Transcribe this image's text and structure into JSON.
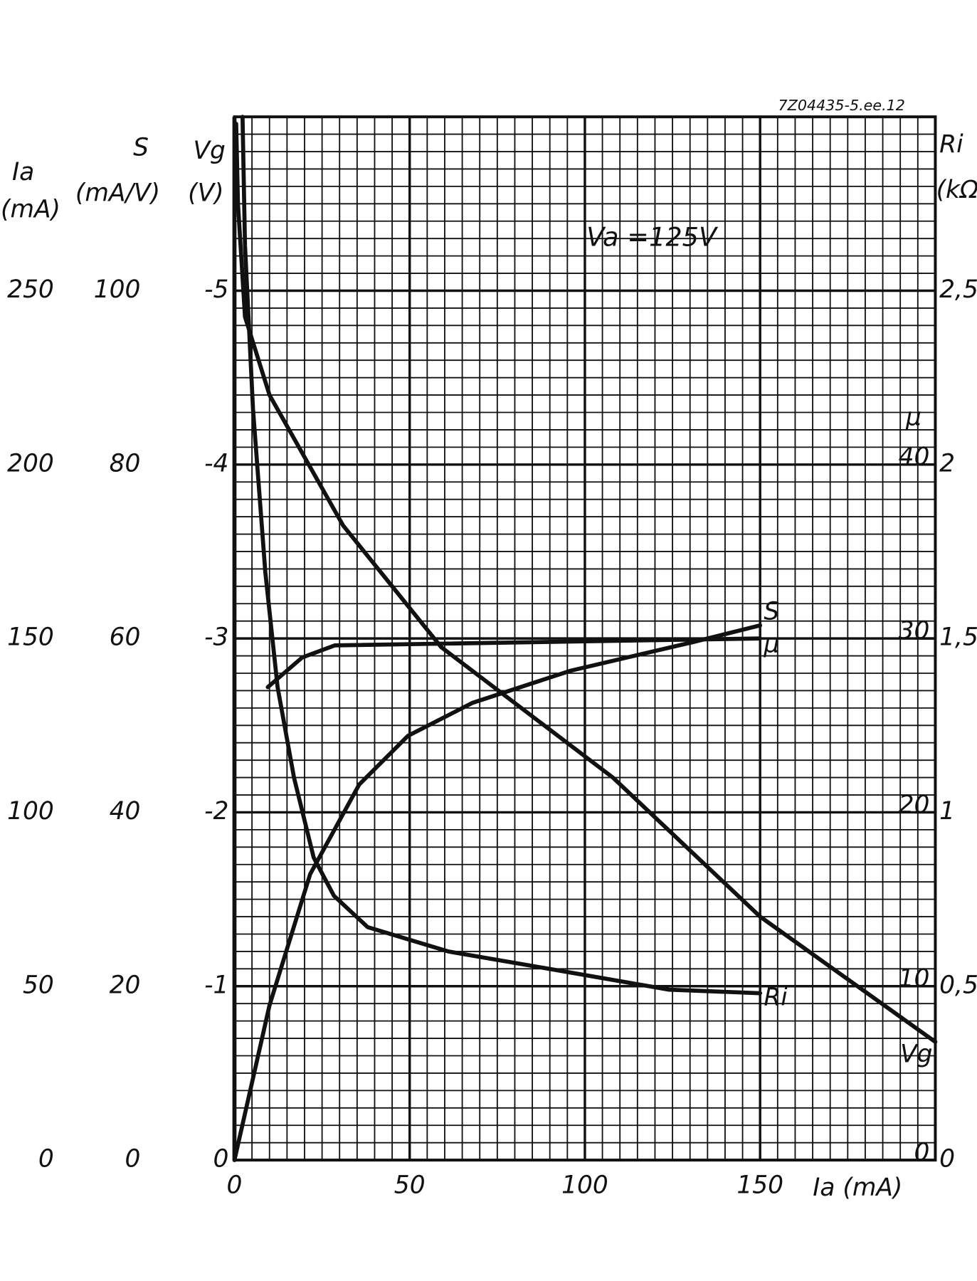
{
  "chart_data": {
    "type": "line",
    "reference": "7Z04435-5.ee.12",
    "annotation": "Va =125V",
    "xlabel": "Ia (mA)",
    "xlim": [
      0,
      200
    ],
    "xticks": [
      0,
      50,
      100,
      150
    ],
    "grid": true,
    "color": "#111111",
    "axes": [
      {
        "symbol": "Ia",
        "unit": "(mA)",
        "side": "left",
        "lim": [
          0,
          300
        ],
        "ticks": [
          0,
          50,
          100,
          150,
          200,
          250
        ]
      },
      {
        "symbol": "S",
        "unit": "(mA/V)",
        "side": "left",
        "lim": [
          0,
          120
        ],
        "ticks": [
          0,
          20,
          40,
          60,
          80,
          100
        ]
      },
      {
        "symbol": "Vg",
        "unit": "(V)",
        "side": "left",
        "lim": [
          0,
          -6
        ],
        "ticks": [
          0,
          -1,
          -2,
          -3,
          -4,
          -5
        ]
      },
      {
        "symbol": "μ",
        "side": "right",
        "lim": [
          0,
          60
        ],
        "ticks": [
          0,
          10,
          20,
          30,
          40
        ]
      },
      {
        "symbol": "Ri",
        "unit": "(kΩ)",
        "side": "right",
        "lim": [
          0,
          3
        ],
        "ticks": [
          0,
          {
            "value": 0.5,
            "label": "0,5"
          },
          1,
          {
            "value": 1.5,
            "label": "1,5"
          },
          2,
          {
            "value": 2.5,
            "label": "2,5"
          }
        ]
      }
    ],
    "series": [
      {
        "name": "Vg",
        "axis": 2,
        "color": "#111111",
        "x": [
          0.5,
          1,
          3,
          10,
          31,
          59,
          108,
          150,
          200
        ],
        "values": [
          -5.96,
          -5.5,
          -4.85,
          -4.4,
          -3.65,
          -2.95,
          -2.2,
          -1.4,
          -0.68
        ]
      },
      {
        "name": "Ri",
        "axis": 4,
        "color": "#111111",
        "x": [
          2.3,
          3,
          5.3,
          8.8,
          12.3,
          17,
          22.6,
          28.4,
          38,
          61,
          84,
          124,
          150
        ],
        "values": [
          3.0,
          2.63,
          2.16,
          1.69,
          1.36,
          1.1,
          0.87,
          0.76,
          0.67,
          0.6,
          0.56,
          0.49,
          0.48
        ]
      },
      {
        "name": "S",
        "axis": 1,
        "color": "#111111",
        "x": [
          0,
          10,
          21.6,
          35.6,
          49.5,
          68,
          96,
          131,
          150
        ],
        "values": [
          0,
          17.8,
          32.9,
          43.2,
          48.8,
          52.6,
          56.3,
          59.6,
          61.5
        ]
      },
      {
        "name": "μ",
        "axis": 3,
        "color": "#111111",
        "x": [
          9.5,
          19.3,
          28.6,
          150
        ],
        "values": [
          27.2,
          28.9,
          29.6,
          30.0
        ]
      }
    ]
  }
}
